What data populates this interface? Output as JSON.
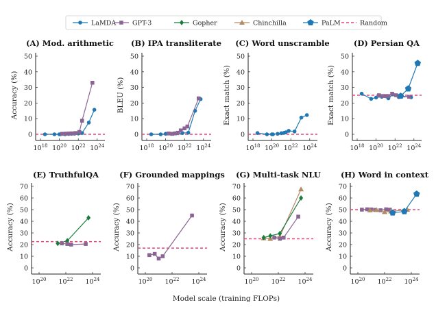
{
  "legend": [
    {
      "name": "LaMDA",
      "color": "#1f78b4",
      "marker": "circle"
    },
    {
      "name": "GPT-3",
      "color": "#8a6594",
      "marker": "square"
    },
    {
      "name": "Gopher",
      "color": "#1b7a3e",
      "marker": "diamond"
    },
    {
      "name": "Chinchilla",
      "color": "#b28a66",
      "marker": "triangle"
    },
    {
      "name": "PaLM",
      "color": "#1f78b4",
      "marker": "pentagon"
    },
    {
      "name": "Random",
      "color": "#e8457a",
      "marker": "dashed-line"
    }
  ],
  "xlabel": "Model scale (training FLOPs)",
  "chart_data": [
    {
      "type": "line",
      "title": "(A) Mod. arithmetic",
      "ylabel": "Accuracy (%)",
      "xscale": "log",
      "xticks": [
        18,
        20,
        22,
        24
      ],
      "yticks": [
        0,
        10,
        20,
        30,
        40,
        50
      ],
      "random": 0,
      "series": [
        {
          "name": "LaMDA",
          "x": [
            3e+18,
            3e+19,
            1e+20,
            1.3e+20,
            4e+20,
            1e+21,
            2e+21,
            4e+21,
            1e+22,
            2.5e+22,
            1.3e+23,
            5e+23
          ],
          "y": [
            0,
            0,
            0,
            0,
            0,
            0.2,
            0.3,
            0.4,
            0.5,
            0.8,
            7.5,
            15.7
          ]
        },
        {
          "name": "GPT-3",
          "x": [
            2e+20,
            5e+20,
            1e+21,
            2e+21,
            5e+21,
            1.3e+22,
            2.5e+22,
            3.1e+23
          ],
          "y": [
            0.3,
            0.4,
            0.5,
            0.6,
            0.8,
            1.5,
            8.7,
            33
          ]
        }
      ]
    },
    {
      "type": "line",
      "title": "(B) IPA transliterate",
      "ylabel": "BLEU (%)",
      "xscale": "log",
      "xticks": [
        18,
        20,
        22,
        24
      ],
      "yticks": [
        0,
        10,
        20,
        30,
        40,
        50
      ],
      "random": 0,
      "series": [
        {
          "name": "LaMDA",
          "x": [
            3e+18,
            3e+19,
            1e+20,
            4e+20,
            1e+21,
            2e+21,
            6e+21,
            2.5e+22,
            1.3e+23,
            5e+23
          ],
          "y": [
            0,
            0,
            0.3,
            0.3,
            0.5,
            0.7,
            0.8,
            1,
            15,
            22.5
          ]
        },
        {
          "name": "GPT-3",
          "x": [
            2e+20,
            5e+20,
            1e+21,
            2e+21,
            4e+21,
            1e+22,
            2e+22,
            3.1e+23
          ],
          "y": [
            0.5,
            0.3,
            0.6,
            1,
            2.5,
            3.8,
            5,
            23
          ]
        }
      ]
    },
    {
      "type": "line",
      "title": "(C) Word unscramble",
      "ylabel": "Exact match (%)",
      "xscale": "log",
      "xticks": [
        18,
        20,
        22,
        24
      ],
      "yticks": [
        0,
        10,
        20,
        30,
        40,
        50
      ],
      "random": 0,
      "series": [
        {
          "name": "LaMDA",
          "x": [
            3e+18,
            3e+19,
            1e+20,
            1.3e+20,
            4e+20,
            1e+21,
            2e+21,
            3e+21,
            6e+21,
            2.5e+22,
            1.3e+23,
            5e+23
          ],
          "y": [
            0.8,
            0,
            0,
            0,
            0.3,
            0.7,
            1,
            1.3,
            2.2,
            1.8,
            10.7,
            12.3
          ]
        }
      ]
    },
    {
      "type": "line",
      "title": "(D) Persian QA",
      "ylabel": "Exact match (%)",
      "xscale": "log",
      "xticks": [
        18,
        20,
        22,
        24
      ],
      "yticks": [
        0,
        10,
        20,
        30,
        40,
        50
      ],
      "random": 25,
      "series": [
        {
          "name": "LaMDA",
          "x": [
            3e+18,
            3e+19,
            1e+20,
            4e+20,
            2e+21,
            6e+21,
            2.5e+22,
            3e+23,
            5e+23
          ],
          "y": [
            26,
            22.7,
            23.5,
            24,
            23,
            25.5,
            23.8,
            24,
            23.7
          ]
        },
        {
          "name": "GPT-3",
          "x": [
            2e+20,
            5e+20,
            1e+21,
            2e+21,
            5e+21,
            1.3e+22,
            2.5e+22,
            3.1e+23
          ],
          "y": [
            25,
            24.5,
            24.5,
            24.5,
            26,
            25,
            24.5,
            24
          ]
        },
        {
          "name": "PaLM",
          "x": [
            4e+22,
            2.5e+23,
            2.5e+24
          ],
          "y": [
            24.5,
            29.2,
            45.5
          ]
        }
      ]
    },
    {
      "type": "line",
      "title": "(E) TruthfulQA",
      "ylabel": "Accuracy (%)",
      "xscale": "log",
      "xticks": [
        20,
        22,
        24
      ],
      "yticks": [
        0,
        10,
        20,
        30,
        40,
        50,
        60,
        70
      ],
      "random": 22.6,
      "series": [
        {
          "name": "Gopher",
          "x": [
            2.5e+21,
            1.3e+22,
            5e+23
          ],
          "y": [
            21,
            23.3,
            43
          ]
        },
        {
          "name": "GPT-3",
          "x": [
            5e+21,
            1.3e+22,
            2.5e+22,
            3.1e+23
          ],
          "y": [
            21,
            20.5,
            20,
            20.5
          ]
        }
      ]
    },
    {
      "type": "line",
      "title": "(F) Grounded mappings",
      "ylabel": "Accuracy (%)",
      "xscale": "log",
      "xticks": [
        20,
        22,
        24
      ],
      "yticks": [
        0,
        10,
        20,
        30,
        40,
        50,
        60,
        70
      ],
      "random": 17,
      "series": [
        {
          "name": "GPT-3",
          "x": [
            2e+20,
            5e+20,
            1e+21,
            2e+21,
            3.1e+23
          ],
          "y": [
            11,
            12,
            8,
            10,
            45
          ]
        }
      ]
    },
    {
      "type": "line",
      "title": "(G) Multi-task NLU",
      "ylabel": "Accuracy (%)",
      "xscale": "log",
      "xticks": [
        20,
        22,
        24
      ],
      "yticks": [
        0,
        10,
        20,
        30,
        40,
        50,
        60,
        70
      ],
      "random": 25,
      "series": [
        {
          "name": "Chinchilla",
          "x": [
            8e+20,
            2.5e+21,
            1.3e+22,
            5e+23
          ],
          "y": [
            25.5,
            25,
            27,
            67.5
          ]
        },
        {
          "name": "GPT-3",
          "x": [
            5e+21,
            1.3e+22,
            2.5e+22,
            3.1e+23
          ],
          "y": [
            26,
            25,
            26,
            44
          ]
        },
        {
          "name": "Gopher",
          "x": [
            8e+20,
            2.5e+21,
            1.3e+22,
            5e+23
          ],
          "y": [
            26,
            27.5,
            29.5,
            60
          ]
        }
      ]
    },
    {
      "type": "line",
      "title": "(H) Word in context",
      "ylabel": "Accuracy (%)",
      "xscale": "log",
      "xticks": [
        20,
        22,
        24
      ],
      "yticks": [
        0,
        10,
        20,
        30,
        40,
        50,
        60,
        70
      ],
      "random": 50,
      "series": [
        {
          "name": "GPT-3",
          "x": [
            2e+20,
            5e+20,
            1e+21,
            2e+21,
            5e+21,
            1.3e+22,
            2.5e+22
          ],
          "y": [
            50,
            50.3,
            50.2,
            49.8,
            49.5,
            50.3,
            50
          ]
        },
        {
          "name": "Chinchilla",
          "x": [
            8e+20,
            2.5e+21,
            1e+22,
            3e+22,
            5e+23
          ],
          "y": [
            49.5,
            49.8,
            48,
            48.5,
            50
          ]
        },
        {
          "name": "PaLM",
          "x": [
            4e+22,
            3e+23,
            2.5e+24
          ],
          "y": [
            47.3,
            48.5,
            63.5
          ]
        }
      ]
    }
  ]
}
